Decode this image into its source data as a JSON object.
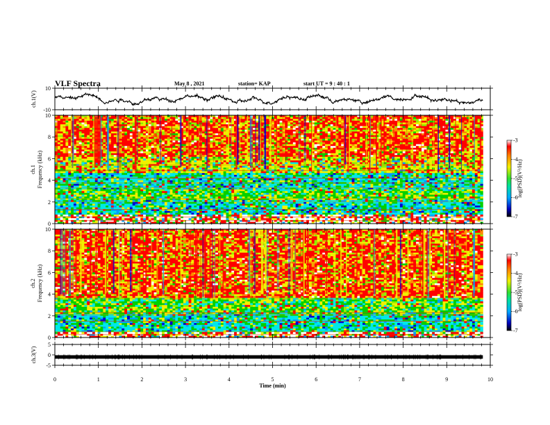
{
  "header": {
    "title": "VLF Spectra",
    "date": "May 8  , 2021",
    "station": "station= KAP",
    "start": "start  UT  =   9  : 40 : 1"
  },
  "chart_data": [
    {
      "type": "line",
      "panel": "ch1-waveform",
      "ylabel": "ch.1(V)",
      "yticks": [
        "10",
        "-10"
      ],
      "ylim": [
        -10,
        10
      ],
      "xlim": [
        0,
        10
      ],
      "signal": "noisy waveform, amplitude roughly -5 to +5 V, fluctuating around 0"
    },
    {
      "type": "heatmap",
      "panel": "ch1-spectrogram",
      "ylabel": "ch.1\nFrequency  (kHz)",
      "yticks": [
        "0",
        "2",
        "4",
        "6",
        "8",
        "10"
      ],
      "ylim": [
        0,
        10
      ],
      "xlim": [
        0,
        9.83
      ],
      "colorbar": {
        "label": "log(PSD)(V²/Hz)",
        "ticks": [
          "-3",
          "-4",
          "-5",
          "-6",
          "-7"
        ],
        "range": [
          -7,
          -3
        ]
      },
      "bands": [
        {
          "from_khz": 0,
          "to_khz": 1.0,
          "level": "red/white mixed"
        },
        {
          "from_khz": 1.0,
          "to_khz": 2.2,
          "level": "cyan/green"
        },
        {
          "from_khz": 2.2,
          "to_khz": 3.2,
          "level": "green/yellow"
        },
        {
          "from_khz": 3.2,
          "to_khz": 4.6,
          "level": "green/cyan"
        },
        {
          "from_khz": 4.6,
          "to_khz": 10,
          "level": "yellow/red with red vertical streaks"
        }
      ]
    },
    {
      "type": "heatmap",
      "panel": "ch2-spectrogram",
      "ylabel": "ch.2\nFrequency  (kHz)",
      "yticks": [
        "0",
        "2",
        "4",
        "6",
        "8",
        "10"
      ],
      "ylim": [
        0,
        10
      ],
      "xlim": [
        0,
        9.83
      ],
      "colorbar": {
        "label": "log(PSD)(V²/Hz)",
        "ticks": [
          "-3",
          "-4",
          "-5",
          "-6",
          "-7"
        ],
        "range": [
          -7,
          -3
        ]
      },
      "bands": [
        {
          "from_khz": 0,
          "to_khz": 0.6,
          "level": "red/white mixed"
        },
        {
          "from_khz": 0.6,
          "to_khz": 2.2,
          "level": "cyan/green"
        },
        {
          "from_khz": 2.2,
          "to_khz": 3.6,
          "level": "green/yellow"
        },
        {
          "from_khz": 3.6,
          "to_khz": 10,
          "level": "red/yellow with red vertical streaks"
        }
      ]
    },
    {
      "type": "line",
      "panel": "ch3-waveform",
      "ylabel": "ch.3(V)",
      "yticks": [
        "5",
        "0",
        "-5"
      ],
      "ylim": [
        -5,
        5
      ],
      "xlim": [
        0,
        10
      ],
      "signal": "flat thick line near -1 V"
    }
  ],
  "xaxis": {
    "label": "Time  (min)",
    "ticks": [
      "0",
      "1",
      "2",
      "3",
      "4",
      "5",
      "6",
      "7",
      "8",
      "9",
      "10"
    ]
  }
}
